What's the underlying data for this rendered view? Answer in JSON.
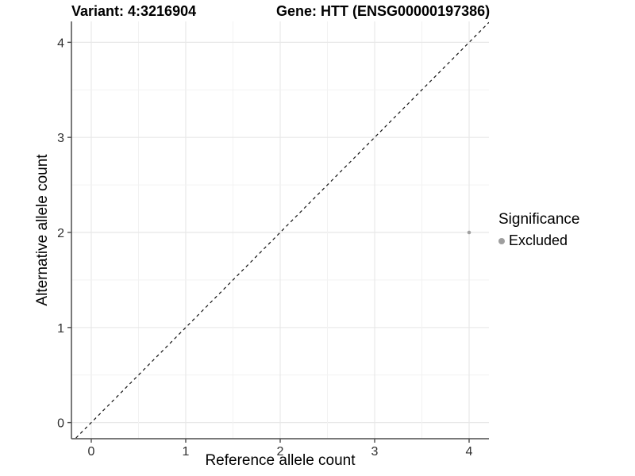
{
  "figure": {
    "title_left": "Variant: 4:3216904",
    "title_right": "Gene: HTT (ENSG00000197386)"
  },
  "chart_data": {
    "type": "scatter",
    "title": "Variant: 4:3216904  /  Gene: HTT (ENSG00000197386)",
    "xlabel": "Reference allele count",
    "ylabel": "Alternative allele count",
    "xlim": [
      -0.21,
      4.21
    ],
    "ylim": [
      -0.17,
      4.22
    ],
    "x_ticks": [
      0,
      1,
      2,
      3,
      4
    ],
    "y_ticks": [
      0,
      1,
      2,
      3,
      4
    ],
    "minor_grid_step": 0.5,
    "grid": true,
    "points": [
      {
        "x": 4,
        "y": 2,
        "significance": "Excluded"
      }
    ],
    "reference_line": {
      "slope": 1,
      "intercept": 0,
      "style": "dashed"
    },
    "legend": {
      "title": "Significance",
      "position": "right",
      "items": [
        {
          "label": "Excluded",
          "color": "#9e9e9e"
        }
      ]
    }
  },
  "colors": {
    "background": "#ffffff",
    "grid_major": "#e8e8e8",
    "grid_minor": "#f2f2f2",
    "axis_line": "#4d4d4d",
    "tick_mark": "#4d4d4d",
    "tick_label": "#2f2f2f",
    "reference_line": "#111111",
    "point_excluded": "#a0a0a0"
  }
}
